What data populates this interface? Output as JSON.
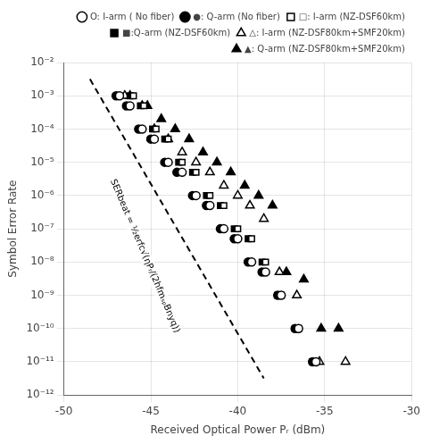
{
  "chart_data": {
    "type": "scatter",
    "xlabel": "Received Optical Power Pᵣ (dBm)",
    "ylabel": "Symbol Error Rate",
    "log": "y",
    "grid": true,
    "legend": "upper right",
    "xlim": [
      -50,
      -30
    ],
    "xticks": [
      -50,
      -45,
      -40,
      -35,
      -30
    ],
    "ylim": [
      1e-12,
      0.01
    ],
    "yticks": [
      {
        "value": 1e-12,
        "label": "10⁻¹²"
      },
      {
        "value": 1e-11,
        "label": "10⁻¹¹"
      },
      {
        "value": 1e-10,
        "label": "10⁻¹⁰"
      },
      {
        "value": 1e-09,
        "label": "10⁻⁹"
      },
      {
        "value": 1e-08,
        "label": "10⁻⁸"
      },
      {
        "value": 1e-07,
        "label": "10⁻⁷"
      },
      {
        "value": 1e-06,
        "label": "10⁻⁶"
      },
      {
        "value": 1e-05,
        "label": "10⁻⁵"
      },
      {
        "value": 0.0001,
        "label": "10⁻⁴"
      },
      {
        "value": 0.001,
        "label": "10⁻³"
      },
      {
        "value": 0.01,
        "label": "10⁻²"
      }
    ],
    "series": [
      {
        "name": "O: I-arm ( No fiber)",
        "marker": "circle-open",
        "color": "black",
        "x": [
          -46.8,
          -46.2,
          -45.5,
          -44.8,
          -44.0,
          -43.2,
          -42.4,
          -41.6,
          -40.8,
          -40.0,
          -39.2,
          -38.4,
          -37.5,
          -36.5,
          -35.5
        ],
        "values": [
          0.001,
          0.0005,
          0.0001,
          5e-05,
          1e-05,
          5e-06,
          1e-06,
          5e-07,
          1e-07,
          5e-08,
          1e-08,
          5e-09,
          1e-09,
          1e-10,
          1e-11
        ]
      },
      {
        "name": "●: Q-arm (No fiber)",
        "marker": "circle",
        "color": "black",
        "x": [
          -47.0,
          -46.4,
          -45.7,
          -45.0,
          -44.2,
          -43.5,
          -42.6,
          -41.8,
          -41.0,
          -40.2,
          -39.4,
          -38.6,
          -37.7,
          -36.7,
          -35.7
        ],
        "values": [
          0.001,
          0.0005,
          0.0001,
          5e-05,
          1e-05,
          5e-06,
          1e-06,
          5e-07,
          1e-07,
          5e-08,
          1e-08,
          5e-09,
          1e-09,
          1e-10,
          1e-11
        ]
      },
      {
        "name": "□: I-arm (NZ-DSF60km)",
        "marker": "square-open",
        "color": "black",
        "x": [
          -46.0,
          -45.4,
          -44.7,
          -44.0,
          -43.2,
          -42.4,
          -41.6,
          -40.8,
          -40.0,
          -39.2,
          -38.4,
          -37.5,
          -36.5,
          -35.5
        ],
        "values": [
          0.001,
          0.0005,
          0.0001,
          5e-05,
          1e-05,
          5e-06,
          1e-06,
          5e-07,
          1e-07,
          5e-08,
          1e-08,
          1e-09,
          1e-10,
          1e-11
        ]
      },
      {
        "name": "■:Q-arm (NZ-DSF60km)",
        "marker": "square",
        "color": "black",
        "x": [
          -46.2,
          -45.6,
          -44.9,
          -44.2,
          -43.4,
          -42.6,
          -41.8,
          -41.0,
          -40.2,
          -39.4,
          -38.6,
          -37.7,
          -36.7,
          -35.7
        ],
        "values": [
          0.001,
          0.0005,
          0.0001,
          5e-05,
          1e-05,
          5e-06,
          1e-06,
          5e-07,
          1e-07,
          5e-08,
          1e-08,
          1e-09,
          1e-10,
          1e-11
        ]
      },
      {
        "name": "△: I-arm (NZ-DSF80km+SMF20km)",
        "marker": "triangle-open",
        "color": "black",
        "x": [
          -46.5,
          -45.5,
          -44.8,
          -44.0,
          -43.2,
          -42.4,
          -41.6,
          -40.8,
          -40.0,
          -39.3,
          -38.5,
          -37.6,
          -36.6,
          -35.3,
          -33.8
        ],
        "values": [
          0.001,
          0.0005,
          0.0001,
          5e-05,
          2e-05,
          1e-05,
          5e-06,
          2e-06,
          1e-06,
          5e-07,
          2e-07,
          5e-09,
          1e-09,
          1e-11,
          1e-11
        ]
      },
      {
        "name": "▲: Q-arm (NZ-DSF80km+SMF20km)",
        "marker": "triangle",
        "color": "black",
        "x": [
          -46.2,
          -45.2,
          -44.4,
          -43.6,
          -42.8,
          -42.0,
          -41.2,
          -40.4,
          -39.6,
          -38.8,
          -38.0,
          -37.2,
          -36.2,
          -35.2,
          -34.2
        ],
        "values": [
          0.001,
          0.0005,
          0.0002,
          0.0001,
          5e-05,
          2e-05,
          1e-05,
          5e-06,
          2e-06,
          1e-06,
          5e-07,
          5e-09,
          3e-09,
          1e-10,
          1e-10
        ]
      }
    ],
    "reference_line": {
      "x": [
        -48.5,
        -38.5
      ],
      "values": [
        0.0031622776601683794,
        3.1622776601683794e-12
      ],
      "color": "black",
      "line_style": "dashed"
    },
    "annotations": [
      {
        "text": "SERbeat = ½erfc√(ηPᵣ/(2hfmₛₚBnyq))",
        "x": -47.2,
        "y": 3e-06
      }
    ]
  }
}
